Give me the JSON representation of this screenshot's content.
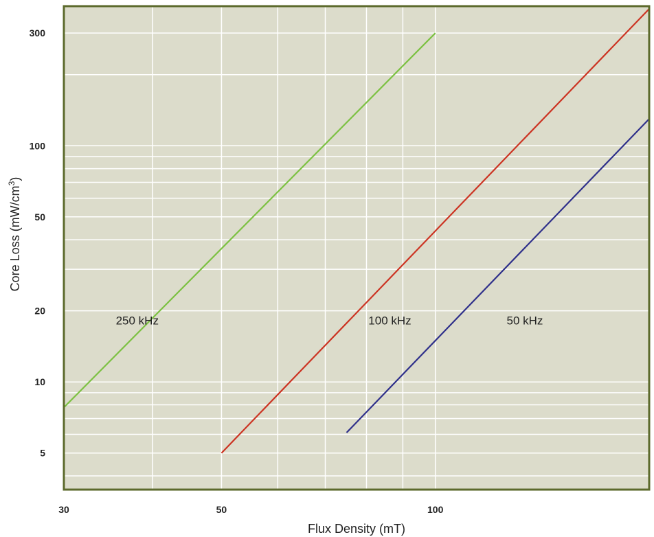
{
  "chart_data": {
    "type": "line",
    "x_scale": "log",
    "y_scale": "log",
    "xlabel": "Flux Density (mT)",
    "ylabel": "Core Loss (mW/cm",
    "ylabel_superscript": "3",
    "ylabel_suffix": ")",
    "xlim": [
      30,
      200
    ],
    "ylim": [
      3.5,
      390
    ],
    "x_ticks": [
      30,
      50,
      100
    ],
    "y_ticks": [
      5,
      10,
      20,
      50,
      100,
      300
    ],
    "x_gridlines": [
      40,
      50,
      60,
      70,
      80,
      90,
      100,
      200
    ],
    "y_gridlines": [
      4,
      5,
      6,
      7,
      8,
      9,
      10,
      20,
      30,
      40,
      50,
      60,
      70,
      80,
      90,
      100,
      200,
      300
    ],
    "grid": true,
    "colors": {
      "plot_background": "#dcdccb",
      "frame": "#5c6a2c",
      "grid": "#ffffff"
    },
    "series": [
      {
        "name": "250 kHz",
        "color": "#7cc142",
        "x": [
          30,
          100
        ],
        "y": [
          7.8,
          300
        ],
        "label_at": [
          35.5,
          17.5
        ]
      },
      {
        "name": "100 kHz",
        "color": "#cc3322",
        "x": [
          50,
          200
        ],
        "y": [
          5.0,
          380
        ],
        "label_at": [
          80.5,
          17.5
        ]
      },
      {
        "name": "50 kHz",
        "color": "#2e2f8a",
        "x": [
          75,
          200
        ],
        "y": [
          6.1,
          130
        ],
        "label_at": [
          126,
          17.5
        ]
      }
    ]
  }
}
